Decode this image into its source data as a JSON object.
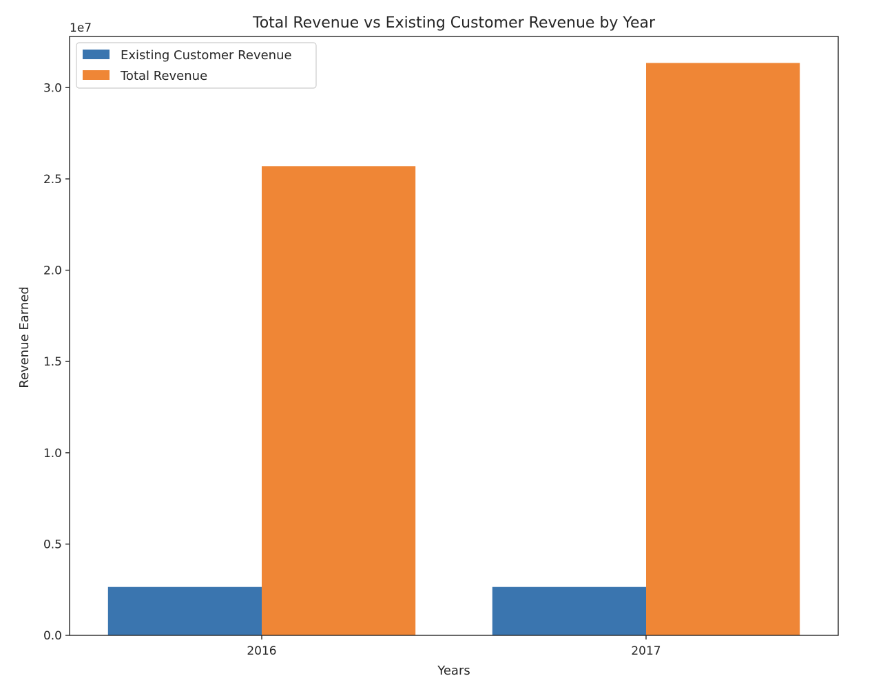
{
  "chart_data": {
    "type": "bar",
    "title": "Total Revenue vs Existing Customer Revenue by Year",
    "xlabel": "Years",
    "ylabel": "Revenue Earned",
    "y_offset_label": "1e7",
    "y_scale_factor": 10000000,
    "categories": [
      "2016",
      "2017"
    ],
    "series": [
      {
        "name": "Existing Customer Revenue",
        "color": "#3a75af",
        "values": [
          2650000,
          2650000
        ]
      },
      {
        "name": "Total Revenue",
        "color": "#ef8636",
        "values": [
          25700000,
          31350000
        ]
      }
    ],
    "ylim": [
      0,
      32800000
    ],
    "yticks": [
      0,
      5000000,
      10000000,
      15000000,
      20000000,
      25000000,
      30000000
    ],
    "ytick_labels": [
      "0.0",
      "0.5",
      "1.0",
      "1.5",
      "2.0",
      "2.5",
      "3.0"
    ],
    "legend_position": "upper-left",
    "grid": false
  }
}
